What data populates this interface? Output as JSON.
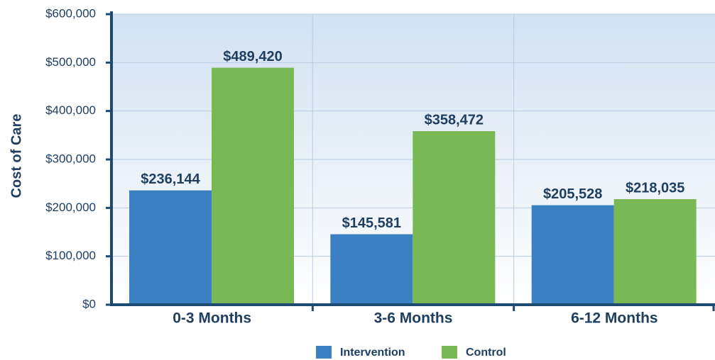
{
  "chart_data": {
    "type": "bar",
    "y_label": "Cost of Care",
    "categories": [
      "0-3 Months",
      "3-6 Months",
      "6-12 Months"
    ],
    "series": [
      {
        "name": "Intervention",
        "color": "#3b80c3",
        "values": [
          236144,
          145581,
          205528
        ],
        "value_labels": [
          "$236,144",
          "$145,581",
          "$205,528"
        ]
      },
      {
        "name": "Control",
        "color": "#78b956",
        "values": [
          489420,
          358472,
          218035
        ],
        "value_labels": [
          "$489,420",
          "$358,472",
          "$218,035"
        ]
      }
    ],
    "ylim": [
      0,
      600000
    ],
    "yticks": [
      {
        "value": 0,
        "label": "$0"
      },
      {
        "value": 100000,
        "label": "$100,000"
      },
      {
        "value": 200000,
        "label": "$200,000"
      },
      {
        "value": 300000,
        "label": "$300,000"
      },
      {
        "value": 400000,
        "label": "$400,000"
      },
      {
        "value": 500000,
        "label": "$500,000"
      },
      {
        "value": 600000,
        "label": "$600,000"
      }
    ],
    "grid": true,
    "legend": "bottom"
  }
}
